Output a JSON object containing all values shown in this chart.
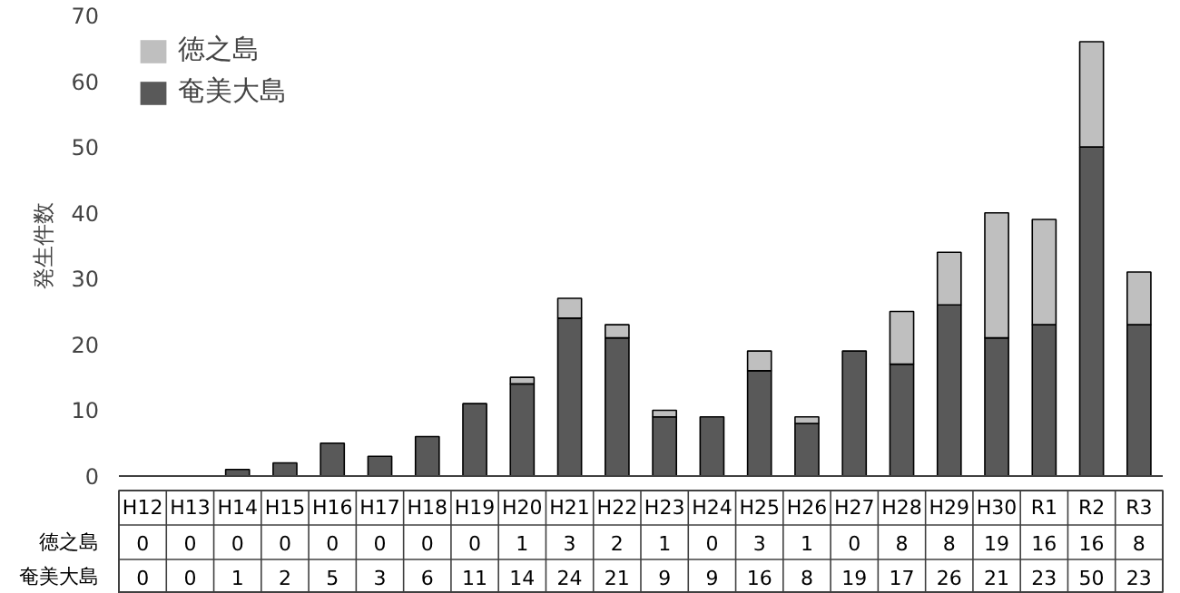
{
  "chart_data": {
    "type": "bar",
    "stacked": true,
    "ylabel": "発生件数",
    "categories": [
      "H12",
      "H13",
      "H14",
      "H15",
      "H16",
      "H17",
      "H18",
      "H19",
      "H20",
      "H21",
      "H22",
      "H23",
      "H24",
      "H25",
      "H26",
      "H27",
      "H28",
      "H29",
      "H30",
      "R1",
      "R2",
      "R3"
    ],
    "series": [
      {
        "name": "奄美大島",
        "color": "#595959",
        "values": [
          0,
          0,
          1,
          2,
          5,
          3,
          6,
          11,
          14,
          24,
          21,
          9,
          9,
          16,
          8,
          19,
          17,
          26,
          21,
          23,
          50,
          23
        ]
      },
      {
        "name": "徳之島",
        "color": "#bfbfbf",
        "values": [
          0,
          0,
          0,
          0,
          0,
          0,
          0,
          0,
          1,
          3,
          2,
          1,
          0,
          3,
          1,
          0,
          8,
          8,
          19,
          16,
          16,
          8
        ]
      }
    ],
    "ylim": [
      0,
      70
    ],
    "yticks": [
      0,
      10,
      20,
      30,
      40,
      50,
      60,
      70
    ],
    "grid": false,
    "legend": "top left",
    "data_labels": true
  }
}
